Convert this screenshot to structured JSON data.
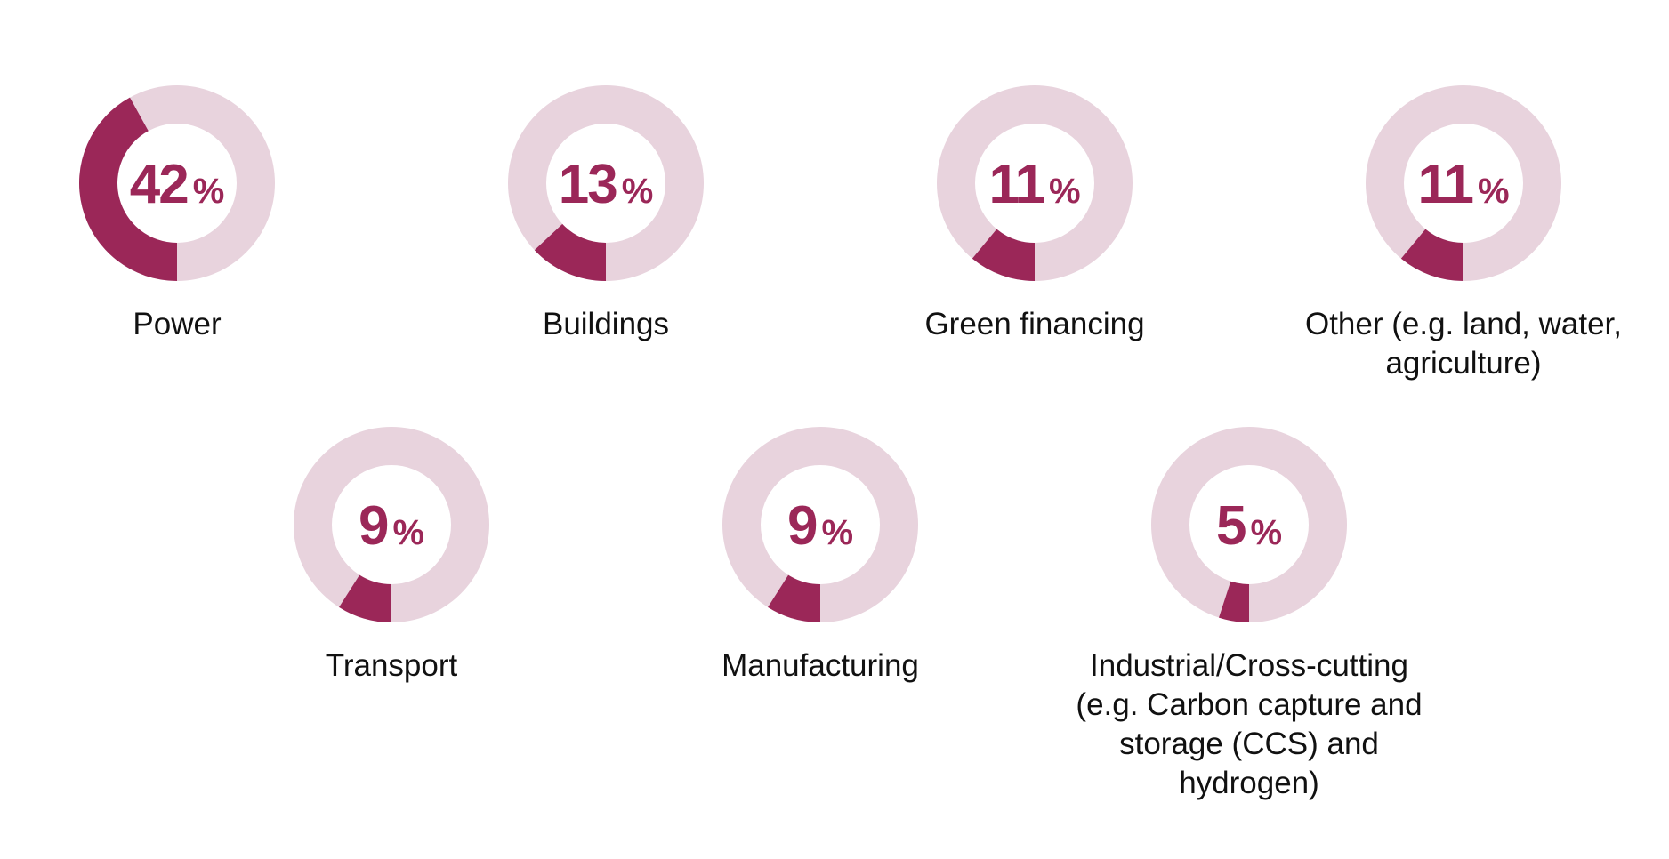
{
  "colors": {
    "accent": "#9b2758",
    "track": "#e8d3dd",
    "text": "#111111"
  },
  "chart_data": {
    "type": "pie",
    "variant": "donut-small-multiples",
    "percent_sign": "%",
    "items": [
      {
        "label": "Power",
        "value": 42
      },
      {
        "label": "Buildings",
        "value": 13
      },
      {
        "label": "Green financing",
        "value": 11
      },
      {
        "label": "Other (e.g. land, water,\nagriculture)",
        "value": 11
      },
      {
        "label": "Transport",
        "value": 9
      },
      {
        "label": "Manufacturing",
        "value": 9
      },
      {
        "label": "Industrial/Cross-cutting\n(e.g. Carbon capture and\nstorage (CCS) and\nhydrogen)",
        "value": 5
      }
    ]
  }
}
